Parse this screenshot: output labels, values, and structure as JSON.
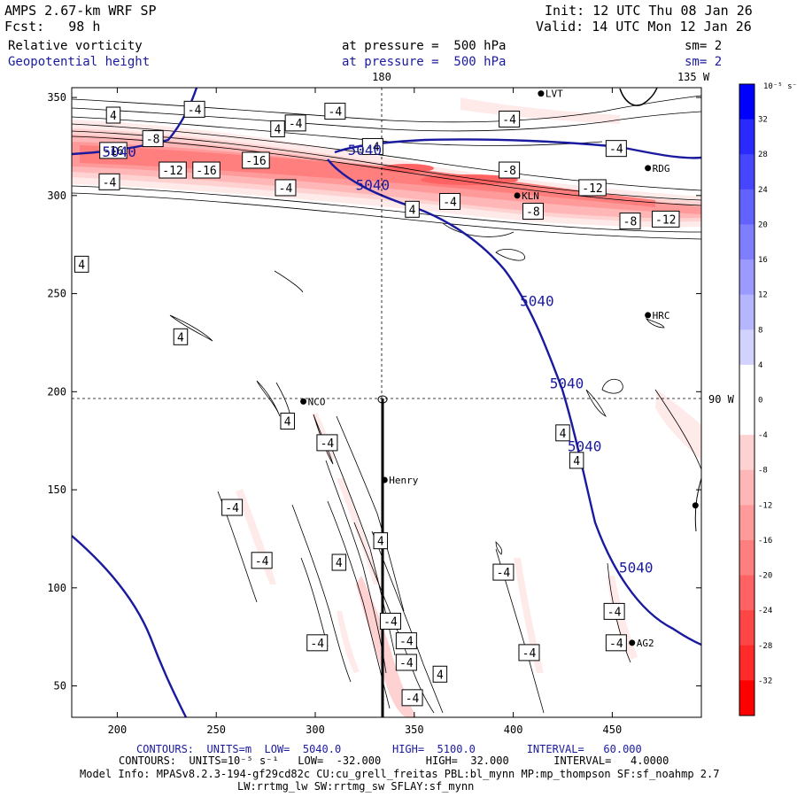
{
  "header": {
    "title": "AMPS 2.67-km WRF SP",
    "fcst": "Fcst:   98 h",
    "init": "Init: 12 UTC Thu 08 Jan 26",
    "valid": "Valid: 14 UTC Mon 12 Jan 26",
    "field1": {
      "name": "Relative vorticity",
      "pressure": "at pressure =  500 hPa",
      "sm": "sm= 2"
    },
    "field2": {
      "name": "Geopotential height",
      "pressure": "at pressure =  500 hPa",
      "sm": "sm= 2"
    }
  },
  "map_labels": {
    "lon_180": "180",
    "lon_135w": "135 W",
    "lat_90w": "90 W"
  },
  "stations": [
    {
      "name": "LVT",
      "x": 414,
      "y": 352
    },
    {
      "name": "RDG",
      "x": 468,
      "y": 314
    },
    {
      "name": "KLN",
      "x": 402,
      "y": 300
    },
    {
      "name": "HRC",
      "x": 468,
      "y": 239
    },
    {
      "name": "NCO",
      "x": 294,
      "y": 195
    },
    {
      "name": "Henry",
      "x": 335,
      "y": 155
    },
    {
      "name": "AG2",
      "x": 460,
      "y": 72
    },
    {
      "name": "",
      "x": 492,
      "y": 142
    }
  ],
  "height_contours": [
    {
      "label": "5040",
      "x": 201,
      "y": 322
    },
    {
      "label": "5040",
      "x": 325,
      "y": 323
    },
    {
      "label": "5040",
      "x": 329,
      "y": 305
    },
    {
      "label": "5040",
      "x": 412,
      "y": 246
    },
    {
      "label": "5040",
      "x": 427,
      "y": 204
    },
    {
      "label": "5040",
      "x": 436,
      "y": 172
    },
    {
      "label": "5040",
      "x": 462,
      "y": 110
    }
  ],
  "vort_labels": [
    {
      "t": "4",
      "x": 198,
      "y": 341
    },
    {
      "t": "-4",
      "x": 239,
      "y": 344
    },
    {
      "t": "4",
      "x": 281,
      "y": 334
    },
    {
      "t": "-4",
      "x": 290,
      "y": 337
    },
    {
      "t": "-4",
      "x": 310,
      "y": 343
    },
    {
      "t": "-4",
      "x": 398,
      "y": 339
    },
    {
      "t": "-8",
      "x": 218,
      "y": 329
    },
    {
      "t": "-16",
      "x": 198,
      "y": 323
    },
    {
      "t": "-4",
      "x": 452,
      "y": 324
    },
    {
      "t": "-12",
      "x": 228,
      "y": 313
    },
    {
      "t": "-16",
      "x": 245,
      "y": 313
    },
    {
      "t": "-16",
      "x": 270,
      "y": 318
    },
    {
      "t": "-4",
      "x": 329,
      "y": 325
    },
    {
      "t": "-4",
      "x": 196,
      "y": 307
    },
    {
      "t": "-4",
      "x": 285,
      "y": 304
    },
    {
      "t": "-8",
      "x": 398,
      "y": 313
    },
    {
      "t": "-12",
      "x": 440,
      "y": 304
    },
    {
      "t": "4",
      "x": 349,
      "y": 293
    },
    {
      "t": "-4",
      "x": 368,
      "y": 297
    },
    {
      "t": "-8",
      "x": 410,
      "y": 292
    },
    {
      "t": "-8",
      "x": 459,
      "y": 287
    },
    {
      "t": "-12",
      "x": 477,
      "y": 288
    },
    {
      "t": "4",
      "x": 182,
      "y": 265
    },
    {
      "t": "4",
      "x": 232,
      "y": 228
    },
    {
      "t": "4",
      "x": 286,
      "y": 185
    },
    {
      "t": "-4",
      "x": 306,
      "y": 174
    },
    {
      "t": "4",
      "x": 425,
      "y": 179
    },
    {
      "t": "4",
      "x": 432,
      "y": 165
    },
    {
      "t": "-4",
      "x": 258,
      "y": 141
    },
    {
      "t": "-4",
      "x": 273,
      "y": 114
    },
    {
      "t": "4",
      "x": 312,
      "y": 113
    },
    {
      "t": "4",
      "x": 333,
      "y": 124
    },
    {
      "t": "-4",
      "x": 395,
      "y": 108
    },
    {
      "t": "-4",
      "x": 451,
      "y": 88
    },
    {
      "t": "-4",
      "x": 338,
      "y": 83
    },
    {
      "t": "-4",
      "x": 346,
      "y": 73
    },
    {
      "t": "-4",
      "x": 301,
      "y": 72
    },
    {
      "t": "-4",
      "x": 346,
      "y": 62
    },
    {
      "t": "-4",
      "x": 408,
      "y": 67
    },
    {
      "t": "-4",
      "x": 452,
      "y": 72
    },
    {
      "t": "4",
      "x": 363,
      "y": 56
    },
    {
      "t": "-4",
      "x": 349,
      "y": 44
    }
  ],
  "axes": {
    "x_ticks": [
      "200",
      "250",
      "300",
      "350",
      "400",
      "450"
    ],
    "x_values": [
      200,
      250,
      300,
      350,
      400,
      450
    ],
    "y_ticks": [
      "50",
      "100",
      "150",
      "200",
      "250",
      "300",
      "350"
    ],
    "y_values": [
      50,
      100,
      150,
      200,
      250,
      300,
      350
    ],
    "xlim": [
      177,
      495
    ],
    "ylim": [
      34,
      355
    ]
  },
  "colorbar": {
    "unit": "10⁻⁵ s⁻¹",
    "labels": [
      "32",
      "28",
      "24",
      "20",
      "16",
      "12",
      "8",
      "4",
      "0",
      "-4",
      "-8",
      "-12",
      "-16",
      "-20",
      "-24",
      "-28",
      "-32"
    ],
    "colors": [
      "#0000ff",
      "#2a2aff",
      "#4646ff",
      "#6262ff",
      "#7e7eff",
      "#9a9aff",
      "#b6b6ff",
      "#d2d2ff",
      "#ffffff",
      "#ffffff",
      "#ffd2d2",
      "#ffb6b6",
      "#ff9a9a",
      "#ff7e7e",
      "#ff6262",
      "#ff4646",
      "#ff2a2a",
      "#ff0000"
    ]
  },
  "footer": {
    "line1": "CONTOURS:  UNITS=m  LOW=  5040.0        HIGH=  5100.0        INTERVAL=   60.000",
    "line2": "CONTOURS:  UNITS=10⁻⁵ s⁻¹   LOW=  -32.000       HIGH=  32.000       INTERVAL=   4.0000",
    "line3": "Model Info: MPASv8.2.3-194-gf29cd82c CU:cu_grell_freitas PBL:bl_mynn MP:mp_thompson SF:sf_noahmp 2.7",
    "line4": "LW:rrtmg_lw SW:rrtmg_sw SFLAY:sf_mynn"
  },
  "colors": {
    "height_contour": "#1a1a9e",
    "vort_neg": "#ff4646",
    "vort_pos": "#0000ff"
  }
}
